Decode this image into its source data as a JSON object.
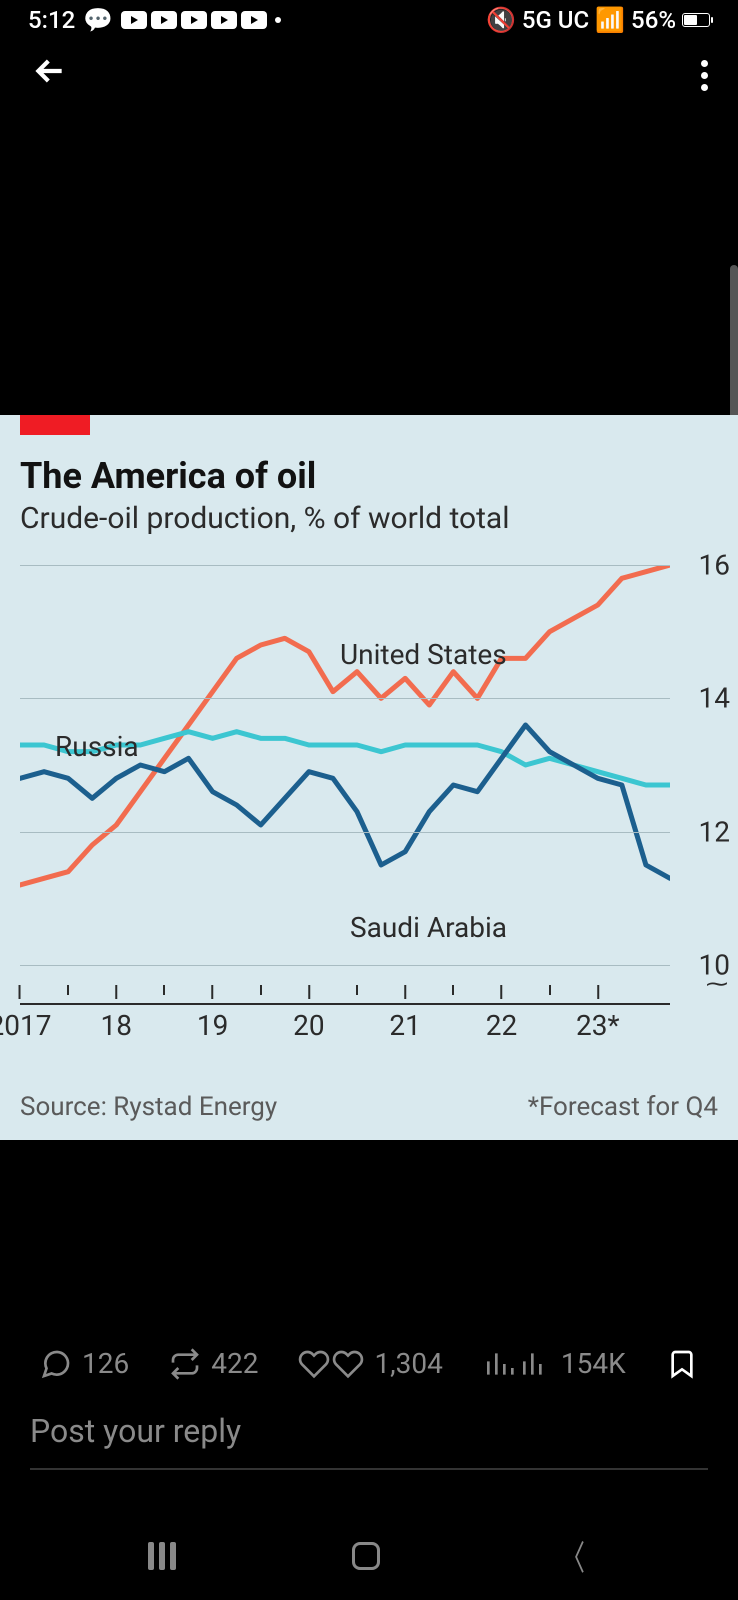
{
  "status": {
    "time": "5:12",
    "network": "5G UC",
    "battery_pct": "56%",
    "battery_fill_pct": 56
  },
  "chart": {
    "type": "line",
    "title": "The America of oil",
    "subtitle": "Crude-oil production, % of world total",
    "source": "Source: Rystad Energy",
    "footnote": "*Forecast for Q4",
    "background_color": "#d9e9ee",
    "accent_color": "#ef1c24",
    "grid_color": "#a8bcc2",
    "text_color": "#2b2b2b",
    "ylim": [
      10,
      16
    ],
    "y_ticks": [
      10,
      12,
      14,
      16
    ],
    "x_ticks": [
      "2017",
      "18",
      "19",
      "20",
      "21",
      "22",
      "23*"
    ],
    "x_positions": [
      0,
      4,
      8,
      12,
      16,
      20,
      24
    ],
    "n_points": 28,
    "series": [
      {
        "name": "United States",
        "label_xy": [
          320,
          73
        ],
        "color": "#f26c4f",
        "width": 5,
        "values": [
          11.2,
          11.3,
          11.4,
          11.8,
          12.1,
          12.6,
          13.1,
          13.6,
          14.1,
          14.6,
          14.8,
          14.9,
          14.7,
          14.1,
          14.4,
          14.0,
          14.3,
          13.9,
          14.4,
          14.0,
          14.6,
          14.6,
          15.0,
          15.2,
          15.4,
          15.8,
          15.9,
          16.0
        ]
      },
      {
        "name": "Russia",
        "label_xy": [
          35,
          165
        ],
        "color": "#3cc6d1",
        "width": 5,
        "values": [
          13.3,
          13.3,
          13.2,
          13.2,
          13.3,
          13.3,
          13.4,
          13.5,
          13.4,
          13.5,
          13.4,
          13.4,
          13.3,
          13.3,
          13.3,
          13.2,
          13.3,
          13.3,
          13.3,
          13.3,
          13.2,
          13.0,
          13.1,
          13.0,
          12.9,
          12.8,
          12.7,
          12.7
        ]
      },
      {
        "name": "Saudi Arabia",
        "label_xy": [
          330,
          346
        ],
        "color": "#1c5f8e",
        "width": 5,
        "values": [
          12.8,
          12.9,
          12.8,
          12.5,
          12.8,
          13.0,
          12.9,
          13.1,
          12.6,
          12.4,
          12.1,
          12.5,
          12.9,
          12.8,
          12.3,
          11.5,
          11.7,
          12.3,
          12.7,
          12.6,
          13.1,
          13.6,
          13.2,
          13.0,
          12.8,
          12.7,
          11.5,
          11.3
        ]
      }
    ]
  },
  "engagement": {
    "replies": "126",
    "reposts": "422",
    "likes": "1,304",
    "views": "154K"
  },
  "reply_placeholder": "Post your reply"
}
